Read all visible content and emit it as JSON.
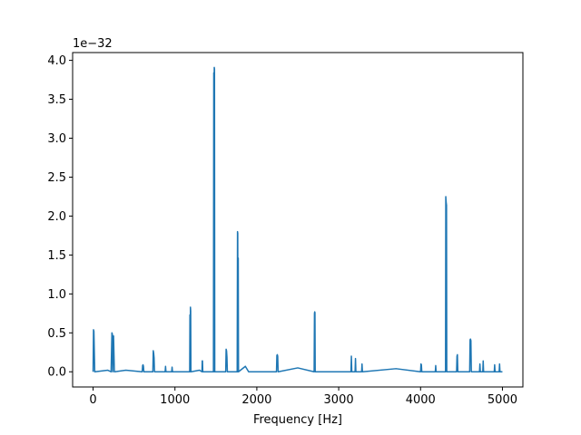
{
  "chart_data": {
    "type": "line",
    "title": "",
    "xlabel": "Frequency [Hz]",
    "ylabel": "",
    "offset_text": "1e−32",
    "xlim": [
      -250,
      5250
    ],
    "ylim": [
      -0.195,
      4.1
    ],
    "xticks": [
      0,
      1000,
      2000,
      3000,
      4000,
      5000
    ],
    "yticks": [
      0.0,
      0.5,
      1.0,
      1.5,
      2.0,
      2.5,
      3.0,
      3.5,
      4.0
    ],
    "ytick_labels": [
      "0.0",
      "0.5",
      "1.0",
      "1.5",
      "2.0",
      "2.5",
      "3.0",
      "3.5",
      "4.0"
    ],
    "grid": false,
    "color": "#1f77b4",
    "series": [
      {
        "x": [
          0,
          5,
          10,
          20,
          180,
          220,
          230,
          236,
          240,
          246,
          250,
          260,
          400,
          600,
          605,
          610,
          615,
          620,
          730,
          735,
          740,
          745,
          750,
          880,
          885,
          890,
          960,
          965,
          970,
          1180,
          1183,
          1186,
          1189,
          1192,
          1195,
          1300,
          1330,
          1333,
          1336,
          1340,
          1470,
          1474,
          1477,
          1480,
          1483,
          1486,
          1620,
          1625,
          1630,
          1635,
          1640,
          1760,
          1764,
          1767,
          1770,
          1773,
          1776,
          1860,
          1900,
          2240,
          2245,
          2250,
          2255,
          2260,
          2500,
          2700,
          2704,
          2707,
          2710,
          2713,
          2716,
          3150,
          3155,
          3160,
          3200,
          3205,
          3210,
          3280,
          3285,
          3290,
          3700,
          4000,
          4005,
          4010,
          4015,
          4180,
          4185,
          4190,
          4305,
          4308,
          4311,
          4314,
          4317,
          4320,
          4440,
          4445,
          4450,
          4455,
          4600,
          4605,
          4610,
          4615,
          4620,
          4720,
          4725,
          4730,
          4760,
          4765,
          4770,
          4900,
          4905,
          4910,
          4960,
          4965,
          4970,
          5000
        ],
        "y": [
          0.0,
          0.54,
          0.52,
          0.0,
          0.02,
          0.0,
          0.5,
          0.48,
          0.0,
          0.44,
          0.46,
          0.0,
          0.02,
          0.0,
          0.08,
          0.09,
          0.07,
          0.0,
          0.0,
          0.27,
          0.24,
          0.18,
          0.0,
          0.0,
          0.07,
          0.0,
          0.0,
          0.06,
          0.0,
          0.0,
          0.73,
          0.0,
          0.83,
          0.78,
          0.0,
          0.02,
          0.0,
          0.14,
          0.14,
          0.0,
          0.0,
          3.84,
          0.0,
          3.91,
          3.89,
          0.0,
          0.0,
          0.29,
          0.27,
          0.19,
          0.0,
          0.0,
          1.8,
          1.78,
          0.0,
          1.46,
          0.0,
          0.07,
          0.0,
          0.0,
          0.21,
          0.22,
          0.2,
          0.0,
          0.05,
          0.0,
          0.75,
          0.77,
          0.76,
          0.0,
          0.0,
          0.0,
          0.2,
          0.0,
          0.0,
          0.17,
          0.0,
          0.0,
          0.1,
          0.0,
          0.04,
          0.0,
          0.1,
          0.09,
          0.0,
          0.0,
          0.08,
          0.0,
          0.0,
          2.25,
          2.2,
          2.16,
          2.14,
          0.0,
          0.0,
          0.2,
          0.22,
          0.0,
          0.0,
          0.41,
          0.42,
          0.4,
          0.0,
          0.0,
          0.1,
          0.0,
          0.0,
          0.14,
          0.0,
          0.0,
          0.09,
          0.0,
          0.0,
          0.1,
          0.0,
          0.0
        ]
      }
    ]
  }
}
